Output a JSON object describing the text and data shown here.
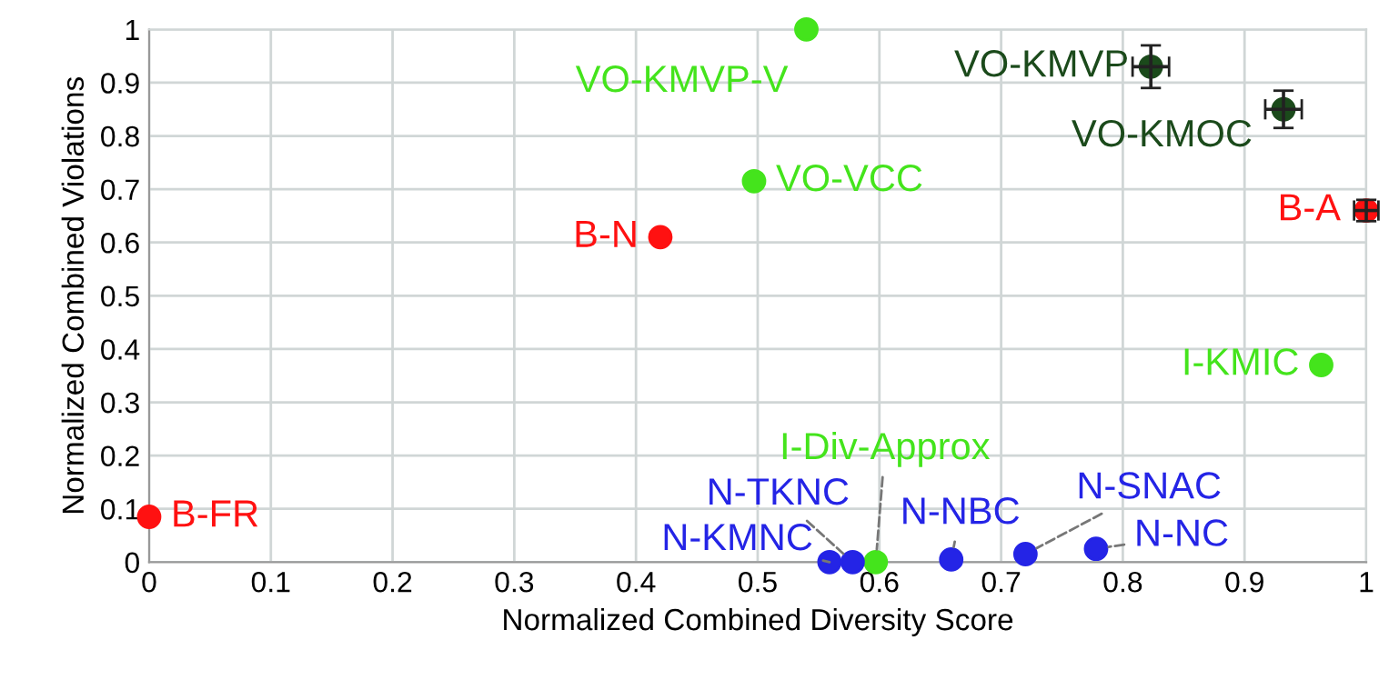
{
  "chart_data": {
    "type": "scatter",
    "xlabel": "Normalized Combined Diversity Score",
    "ylabel": "Normalized Combined Violations",
    "xlim": [
      0,
      1
    ],
    "ylim": [
      0,
      1
    ],
    "xticks": [
      0,
      0.1,
      0.2,
      0.3,
      0.4,
      0.5,
      0.6,
      0.7,
      0.8,
      0.9,
      1
    ],
    "yticks": [
      0,
      0.1,
      0.2,
      0.3,
      0.4,
      0.5,
      0.6,
      0.7,
      0.8,
      0.9,
      1
    ],
    "grid": true,
    "marker": "circle",
    "series": [
      {
        "color": "#ff1111",
        "x": [
          0,
          0.42,
          1.0
        ],
        "values": [
          0.085,
          0.61,
          0.66
        ],
        "errors": [
          null,
          null,
          0.02
        ],
        "xerrors": [
          null,
          null,
          0.01
        ]
      },
      {
        "color": "#44e41c",
        "x": [
          0.54,
          0.497,
          0.963,
          0.597
        ],
        "values": [
          1.0,
          0.715,
          0.37,
          0.0
        ]
      },
      {
        "color": "#1b4a1b",
        "x": [
          0.823,
          0.932
        ],
        "values": [
          0.93,
          0.85
        ],
        "errors": [
          0.04,
          0.035
        ],
        "xerrors": [
          0.015,
          0.015
        ]
      },
      {
        "color": "#2424e6",
        "x": [
          0.559,
          0.578,
          0.659,
          0.72,
          0.778
        ],
        "values": [
          0.0,
          0.0,
          0.005,
          0.015,
          0.025
        ]
      }
    ],
    "annotations": [
      {
        "text": "B-FR",
        "x": 0,
        "y": 0.085
      },
      {
        "text": "B-N",
        "x": 0.42,
        "y": 0.61
      },
      {
        "text": "VO-KMVP-V",
        "x": 0.54,
        "y": 1.0
      },
      {
        "text": "VO-VCC",
        "x": 0.497,
        "y": 0.715
      },
      {
        "text": "VO-KMVP",
        "x": 0.823,
        "y": 0.93
      },
      {
        "text": "VO-KMOC",
        "x": 0.932,
        "y": 0.85
      },
      {
        "text": "B-A",
        "x": 1.0,
        "y": 0.66
      },
      {
        "text": "I-KMIC",
        "x": 0.963,
        "y": 0.37
      },
      {
        "text": "I-Div-Approx",
        "x": 0.597,
        "y": 0.0
      },
      {
        "text": "N-KMNC",
        "x": 0.559,
        "y": 0.0
      },
      {
        "text": "N-TKNC",
        "x": 0.578,
        "y": 0.0
      },
      {
        "text": "N-NBC",
        "x": 0.659,
        "y": 0.005
      },
      {
        "text": "N-SNAC",
        "x": 0.72,
        "y": 0.015
      },
      {
        "text": "N-NC",
        "x": 0.778,
        "y": 0.025
      }
    ]
  }
}
